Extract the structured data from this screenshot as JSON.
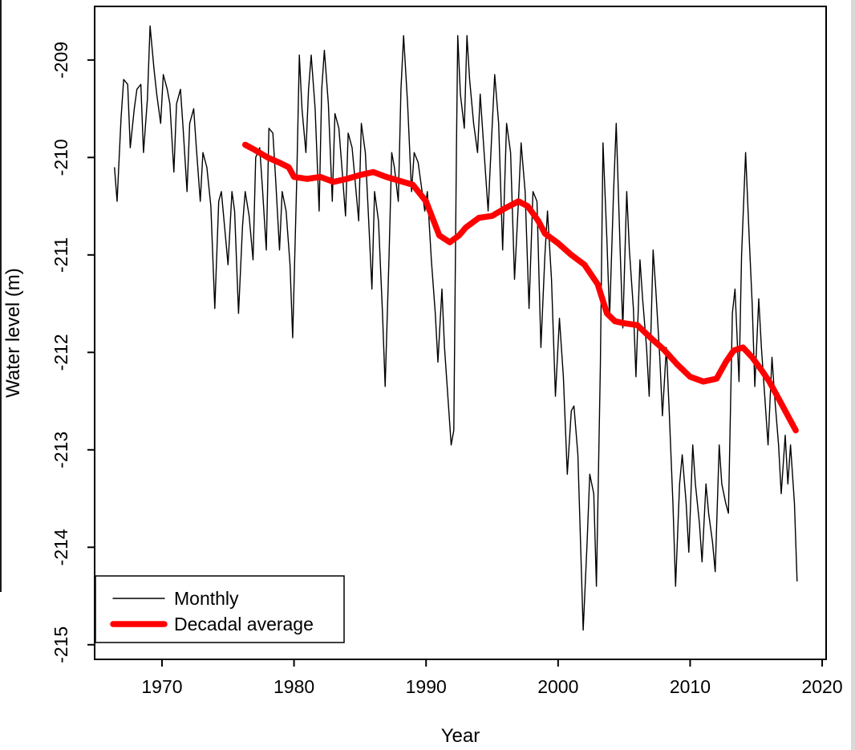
{
  "figure": {
    "background": "#ffffff",
    "frame_color": "#000000"
  },
  "chart_data": {
    "type": "line",
    "title": "",
    "xlabel": "Year",
    "ylabel": "Water level (m)",
    "xlim": [
      1964.9,
      2020.3
    ],
    "ylim": [
      -215.15,
      -208.45
    ],
    "xticks": [
      1970,
      1980,
      1990,
      2000,
      2010,
      2020
    ],
    "yticks": [
      -209,
      -210,
      -211,
      -212,
      -213,
      -214,
      -215
    ],
    "grid": false,
    "legend": {
      "position": "bottom-left",
      "entries": [
        {
          "label": "Monthly",
          "color": "#000000",
          "line_width": 1.5
        },
        {
          "label": "Decadal average",
          "color": "#ff0000",
          "line_width": 7.5
        }
      ]
    },
    "series": [
      {
        "name": "Monthly",
        "color": "#000000",
        "line_width": 1.4,
        "points": [
          [
            1966.4,
            -210.1
          ],
          [
            1966.6,
            -210.45
          ],
          [
            1966.9,
            -209.6
          ],
          [
            1967.1,
            -209.2
          ],
          [
            1967.4,
            -209.25
          ],
          [
            1967.6,
            -209.9
          ],
          [
            1967.9,
            -209.5
          ],
          [
            1968.1,
            -209.3
          ],
          [
            1968.4,
            -209.25
          ],
          [
            1968.6,
            -209.95
          ],
          [
            1968.9,
            -209.4
          ],
          [
            1969.1,
            -208.65
          ],
          [
            1969.4,
            -209.1
          ],
          [
            1969.6,
            -209.35
          ],
          [
            1969.9,
            -209.65
          ],
          [
            1970.1,
            -209.15
          ],
          [
            1970.4,
            -209.3
          ],
          [
            1970.6,
            -209.45
          ],
          [
            1970.9,
            -210.15
          ],
          [
            1971.1,
            -209.45
          ],
          [
            1971.4,
            -209.3
          ],
          [
            1971.6,
            -209.7
          ],
          [
            1971.9,
            -210.35
          ],
          [
            1972.1,
            -209.65
          ],
          [
            1972.4,
            -209.5
          ],
          [
            1972.6,
            -209.9
          ],
          [
            1972.9,
            -210.45
          ],
          [
            1973.1,
            -209.95
          ],
          [
            1973.4,
            -210.1
          ],
          [
            1973.7,
            -210.5
          ],
          [
            1974.0,
            -211.55
          ],
          [
            1974.3,
            -210.45
          ],
          [
            1974.5,
            -210.35
          ],
          [
            1974.8,
            -210.8
          ],
          [
            1975.0,
            -211.1
          ],
          [
            1975.3,
            -210.35
          ],
          [
            1975.5,
            -210.55
          ],
          [
            1975.8,
            -211.6
          ],
          [
            1976.1,
            -210.7
          ],
          [
            1976.3,
            -210.35
          ],
          [
            1976.6,
            -210.6
          ],
          [
            1976.9,
            -211.05
          ],
          [
            1977.1,
            -210.0
          ],
          [
            1977.4,
            -209.9
          ],
          [
            1977.6,
            -210.3
          ],
          [
            1977.9,
            -210.95
          ],
          [
            1978.1,
            -209.7
          ],
          [
            1978.4,
            -209.75
          ],
          [
            1978.6,
            -210.2
          ],
          [
            1978.9,
            -210.95
          ],
          [
            1979.1,
            -210.35
          ],
          [
            1979.4,
            -210.55
          ],
          [
            1979.7,
            -211.1
          ],
          [
            1979.9,
            -211.85
          ],
          [
            1980.2,
            -210.25
          ],
          [
            1980.4,
            -208.95
          ],
          [
            1980.6,
            -209.5
          ],
          [
            1980.9,
            -209.95
          ],
          [
            1981.1,
            -209.3
          ],
          [
            1981.3,
            -208.95
          ],
          [
            1981.6,
            -209.5
          ],
          [
            1981.9,
            -210.55
          ],
          [
            1982.1,
            -209.3
          ],
          [
            1982.3,
            -208.9
          ],
          [
            1982.6,
            -209.45
          ],
          [
            1982.9,
            -210.45
          ],
          [
            1983.1,
            -209.55
          ],
          [
            1983.4,
            -209.7
          ],
          [
            1983.6,
            -210.05
          ],
          [
            1983.9,
            -210.6
          ],
          [
            1984.1,
            -209.75
          ],
          [
            1984.4,
            -209.9
          ],
          [
            1984.6,
            -210.2
          ],
          [
            1984.9,
            -210.65
          ],
          [
            1985.1,
            -209.65
          ],
          [
            1985.4,
            -209.95
          ],
          [
            1985.6,
            -210.5
          ],
          [
            1985.9,
            -211.35
          ],
          [
            1986.1,
            -210.35
          ],
          [
            1986.4,
            -210.65
          ],
          [
            1986.7,
            -211.6
          ],
          [
            1986.9,
            -212.35
          ],
          [
            1987.2,
            -211.0
          ],
          [
            1987.4,
            -209.95
          ],
          [
            1987.6,
            -210.1
          ],
          [
            1987.9,
            -210.45
          ],
          [
            1988.1,
            -209.3
          ],
          [
            1988.3,
            -208.75
          ],
          [
            1988.6,
            -209.45
          ],
          [
            1988.9,
            -210.35
          ],
          [
            1989.1,
            -209.95
          ],
          [
            1989.4,
            -210.05
          ],
          [
            1989.6,
            -210.25
          ],
          [
            1989.9,
            -210.55
          ],
          [
            1990.1,
            -210.35
          ],
          [
            1990.4,
            -211.05
          ],
          [
            1990.7,
            -211.6
          ],
          [
            1990.9,
            -212.1
          ],
          [
            1991.2,
            -211.35
          ],
          [
            1991.4,
            -211.95
          ],
          [
            1991.7,
            -212.55
          ],
          [
            1991.9,
            -212.95
          ],
          [
            1992.1,
            -212.8
          ],
          [
            1992.3,
            -209.9
          ],
          [
            1992.4,
            -208.75
          ],
          [
            1992.6,
            -209.35
          ],
          [
            1992.9,
            -209.7
          ],
          [
            1993.1,
            -208.75
          ],
          [
            1993.3,
            -209.2
          ],
          [
            1993.6,
            -209.65
          ],
          [
            1993.9,
            -209.95
          ],
          [
            1994.1,
            -209.35
          ],
          [
            1994.4,
            -209.95
          ],
          [
            1994.7,
            -210.55
          ],
          [
            1995.0,
            -209.7
          ],
          [
            1995.2,
            -209.15
          ],
          [
            1995.5,
            -209.65
          ],
          [
            1995.8,
            -210.95
          ],
          [
            1996.1,
            -209.65
          ],
          [
            1996.4,
            -209.95
          ],
          [
            1996.7,
            -211.25
          ],
          [
            1997.0,
            -210.45
          ],
          [
            1997.2,
            -209.85
          ],
          [
            1997.5,
            -210.35
          ],
          [
            1997.8,
            -211.55
          ],
          [
            1998.1,
            -210.35
          ],
          [
            1998.4,
            -210.45
          ],
          [
            1998.7,
            -211.95
          ],
          [
            1999.0,
            -211.0
          ],
          [
            1999.2,
            -210.55
          ],
          [
            1999.5,
            -211.25
          ],
          [
            1999.8,
            -212.45
          ],
          [
            2000.1,
            -211.65
          ],
          [
            2000.4,
            -212.25
          ],
          [
            2000.7,
            -213.25
          ],
          [
            2001.0,
            -212.6
          ],
          [
            2001.2,
            -212.55
          ],
          [
            2001.5,
            -213.05
          ],
          [
            2001.9,
            -214.85
          ],
          [
            2002.2,
            -213.95
          ],
          [
            2002.4,
            -213.25
          ],
          [
            2002.7,
            -213.45
          ],
          [
            2002.9,
            -214.4
          ],
          [
            2003.2,
            -212.15
          ],
          [
            2003.4,
            -209.85
          ],
          [
            2003.7,
            -210.85
          ],
          [
            2003.9,
            -211.65
          ],
          [
            2004.2,
            -210.35
          ],
          [
            2004.4,
            -209.65
          ],
          [
            2004.7,
            -210.95
          ],
          [
            2004.9,
            -211.75
          ],
          [
            2005.2,
            -210.35
          ],
          [
            2005.4,
            -210.95
          ],
          [
            2005.7,
            -211.55
          ],
          [
            2005.9,
            -212.25
          ],
          [
            2006.2,
            -211.05
          ],
          [
            2006.4,
            -211.45
          ],
          [
            2006.7,
            -211.95
          ],
          [
            2006.9,
            -212.45
          ],
          [
            2007.2,
            -210.95
          ],
          [
            2007.4,
            -211.35
          ],
          [
            2007.7,
            -212.05
          ],
          [
            2007.9,
            -212.65
          ],
          [
            2008.2,
            -211.95
          ],
          [
            2008.4,
            -212.55
          ],
          [
            2008.7,
            -213.55
          ],
          [
            2008.9,
            -214.4
          ],
          [
            2009.2,
            -213.35
          ],
          [
            2009.4,
            -213.05
          ],
          [
            2009.7,
            -213.55
          ],
          [
            2009.9,
            -214.05
          ],
          [
            2010.2,
            -212.95
          ],
          [
            2010.4,
            -213.35
          ],
          [
            2010.7,
            -213.75
          ],
          [
            2010.9,
            -214.15
          ],
          [
            2011.2,
            -213.35
          ],
          [
            2011.4,
            -213.65
          ],
          [
            2011.7,
            -213.95
          ],
          [
            2011.9,
            -214.25
          ],
          [
            2012.2,
            -212.95
          ],
          [
            2012.4,
            -213.35
          ],
          [
            2012.7,
            -213.55
          ],
          [
            2012.9,
            -213.65
          ],
          [
            2013.2,
            -211.6
          ],
          [
            2013.4,
            -211.35
          ],
          [
            2013.7,
            -212.3
          ],
          [
            2013.9,
            -211.0
          ],
          [
            2014.2,
            -209.95
          ],
          [
            2014.5,
            -210.9
          ],
          [
            2014.7,
            -211.5
          ],
          [
            2014.9,
            -212.35
          ],
          [
            2015.2,
            -211.45
          ],
          [
            2015.4,
            -211.95
          ],
          [
            2015.7,
            -212.55
          ],
          [
            2015.9,
            -212.95
          ],
          [
            2016.2,
            -212.05
          ],
          [
            2016.4,
            -212.45
          ],
          [
            2016.7,
            -212.95
          ],
          [
            2016.9,
            -213.45
          ],
          [
            2017.2,
            -212.85
          ],
          [
            2017.4,
            -213.35
          ],
          [
            2017.6,
            -212.95
          ],
          [
            2017.9,
            -213.55
          ],
          [
            2018.1,
            -214.35
          ]
        ]
      },
      {
        "name": "Decadal average",
        "color": "#ff0000",
        "line_width": 7.5,
        "points": [
          [
            1976.3,
            -209.87
          ],
          [
            1977,
            -209.92
          ],
          [
            1978,
            -210.0
          ],
          [
            1979,
            -210.06
          ],
          [
            1979.6,
            -210.1
          ],
          [
            1980,
            -210.2
          ],
          [
            1981,
            -210.22
          ],
          [
            1982,
            -210.2
          ],
          [
            1983,
            -210.25
          ],
          [
            1984,
            -210.22
          ],
          [
            1985,
            -210.18
          ],
          [
            1986,
            -210.15
          ],
          [
            1987,
            -210.2
          ],
          [
            1988,
            -210.24
          ],
          [
            1989,
            -210.28
          ],
          [
            1990,
            -210.45
          ],
          [
            1991,
            -210.8
          ],
          [
            1991.8,
            -210.87
          ],
          [
            1992.5,
            -210.8
          ],
          [
            1993,
            -210.72
          ],
          [
            1994,
            -210.62
          ],
          [
            1995,
            -210.6
          ],
          [
            1996,
            -210.52
          ],
          [
            1997,
            -210.45
          ],
          [
            1997.7,
            -210.5
          ],
          [
            1998.5,
            -210.65
          ],
          [
            1999,
            -210.78
          ],
          [
            2000,
            -210.88
          ],
          [
            2001,
            -211.0
          ],
          [
            2002,
            -211.1
          ],
          [
            2003,
            -211.3
          ],
          [
            2003.7,
            -211.6
          ],
          [
            2004.3,
            -211.68
          ],
          [
            2005,
            -211.7
          ],
          [
            2006,
            -211.72
          ],
          [
            2007,
            -211.85
          ],
          [
            2008,
            -211.97
          ],
          [
            2009,
            -212.12
          ],
          [
            2010,
            -212.25
          ],
          [
            2011,
            -212.3
          ],
          [
            2012,
            -212.27
          ],
          [
            2012.7,
            -212.1
          ],
          [
            2013.3,
            -211.98
          ],
          [
            2014,
            -211.95
          ],
          [
            2014.7,
            -212.05
          ],
          [
            2015.5,
            -212.2
          ],
          [
            2016,
            -212.3
          ],
          [
            2017,
            -212.55
          ],
          [
            2018,
            -212.8
          ]
        ]
      }
    ]
  }
}
